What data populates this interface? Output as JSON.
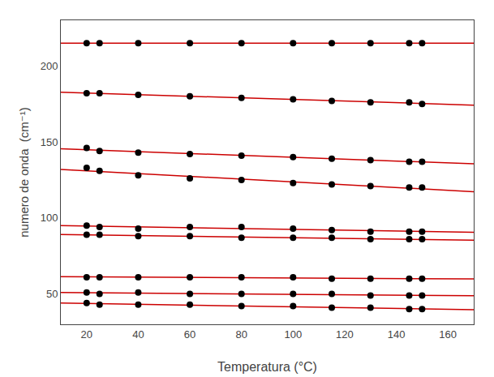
{
  "chart_data": {
    "type": "scatter",
    "xlabel": "Temperatura (°C)",
    "ylabel": "numero de onda  (cm⁻¹)",
    "x": [
      20,
      25,
      40,
      60,
      80,
      100,
      115,
      130,
      145,
      150
    ],
    "xlim": [
      10,
      170
    ],
    "ylim": [
      30,
      230
    ],
    "xticks": [
      20,
      40,
      60,
      80,
      100,
      120,
      140,
      160
    ],
    "yticks": [
      50,
      100,
      150,
      200
    ],
    "grid": false,
    "series": [
      {
        "type": "line",
        "x": [
          10,
          170
        ],
        "values": [
          215,
          215
        ],
        "color": "#cc0000",
        "line_style": "solid"
      },
      {
        "type": "scatter",
        "values": [
          215,
          215,
          215,
          215,
          215,
          215,
          215,
          215,
          215,
          215
        ],
        "color": "#000000",
        "marker": "circle"
      },
      {
        "type": "line",
        "x": [
          10,
          170
        ],
        "values": [
          182.6439,
          174.1861
        ],
        "color": "#cc0000",
        "line_style": "solid"
      },
      {
        "type": "scatter",
        "values": [
          182,
          182,
          181,
          180,
          179,
          178,
          177,
          176,
          176,
          175
        ],
        "color": "#000000",
        "marker": "circle"
      },
      {
        "type": "line",
        "x": [
          10,
          170
        ],
        "values": [
          145.4268,
          135.5407
        ],
        "color": "#cc0000",
        "line_style": "solid"
      },
      {
        "type": "scatter",
        "values": [
          146,
          144,
          143,
          142,
          141,
          140,
          139,
          138,
          137,
          137
        ],
        "color": "#000000",
        "marker": "circle"
      },
      {
        "type": "line",
        "x": [
          10,
          170
        ],
        "values": [
          131.9019,
          117.2574
        ],
        "color": "#cc0000",
        "line_style": "solid"
      },
      {
        "type": "scatter",
        "values": [
          133,
          131,
          128,
          126,
          125,
          123,
          122,
          121,
          120,
          120
        ],
        "color": "#000000",
        "marker": "circle"
      },
      {
        "type": "line",
        "x": [
          10,
          170
        ],
        "values": [
          94.8933,
          90.5152
        ],
        "color": "#cc0000",
        "line_style": "solid"
      },
      {
        "type": "scatter",
        "values": [
          95,
          94,
          93,
          94,
          94,
          93,
          92,
          91,
          91,
          91
        ],
        "color": "#000000",
        "marker": "circle"
      },
      {
        "type": "line",
        "x": [
          10,
          170
        ],
        "values": [
          89.0634,
          85.3752
        ],
        "color": "#cc0000",
        "line_style": "solid"
      },
      {
        "type": "scatter",
        "values": [
          89,
          89,
          88,
          88,
          87,
          87,
          87,
          86,
          86,
          86
        ],
        "color": "#000000",
        "marker": "circle"
      },
      {
        "type": "line",
        "x": [
          10,
          170
        ],
        "values": [
          61.2918,
          59.8449
        ],
        "color": "#cc0000",
        "line_style": "solid"
      },
      {
        "type": "scatter",
        "values": [
          61,
          61,
          61,
          61,
          61,
          61,
          60,
          60,
          60,
          60
        ],
        "color": "#000000",
        "marker": "circle"
      },
      {
        "type": "line",
        "x": [
          10,
          170
        ],
        "values": [
          50.8931,
          48.816
        ],
        "color": "#cc0000",
        "line_style": "solid"
      },
      {
        "type": "scatter",
        "values": [
          51,
          50,
          51,
          50,
          50,
          50,
          50,
          49,
          49,
          49
        ],
        "color": "#000000",
        "marker": "circle"
      },
      {
        "type": "line",
        "x": [
          10,
          170
        ],
        "values": [
          43.9808,
          39.6288
        ],
        "color": "#cc0000",
        "line_style": "solid"
      },
      {
        "type": "scatter",
        "values": [
          44,
          43,
          43,
          43,
          42,
          42,
          41,
          41,
          40,
          40
        ],
        "color": "#000000",
        "marker": "circle"
      }
    ]
  }
}
